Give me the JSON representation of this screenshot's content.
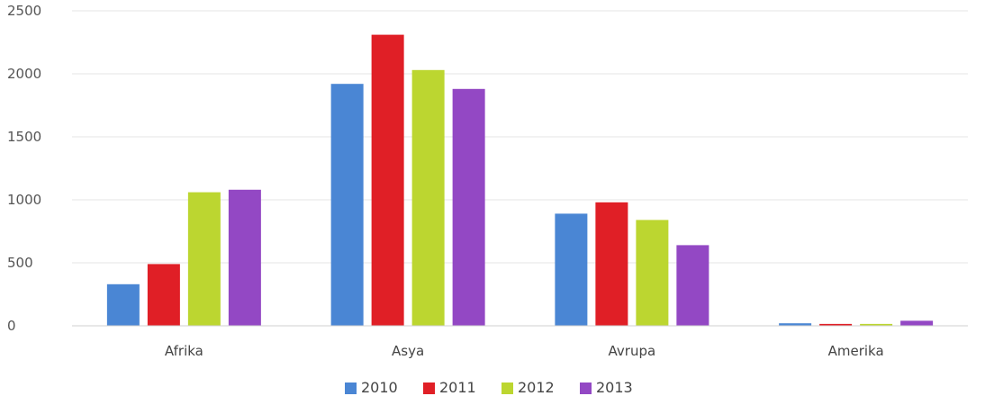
{
  "chart_data": {
    "type": "bar",
    "title": "",
    "xlabel": "",
    "ylabel": "",
    "categories": [
      "Afrika",
      "Asya",
      "Avrupa",
      "Amerika"
    ],
    "series": [
      {
        "name": "2010",
        "color": "#4a86d4",
        "values": [
          330,
          1920,
          890,
          20
        ]
      },
      {
        "name": "2011",
        "color": "#e01f26",
        "values": [
          490,
          2310,
          980,
          15
        ]
      },
      {
        "name": "2012",
        "color": "#bcd630",
        "values": [
          1060,
          2030,
          840,
          15
        ]
      },
      {
        "name": "2013",
        "color": "#9348c4",
        "values": [
          1080,
          1880,
          640,
          40
        ]
      }
    ],
    "ylim": [
      0,
      2500
    ],
    "yticks": [
      "0",
      "500",
      "1000",
      "1500",
      "2000",
      "2500"
    ],
    "grid": true,
    "legend": "bottom"
  }
}
